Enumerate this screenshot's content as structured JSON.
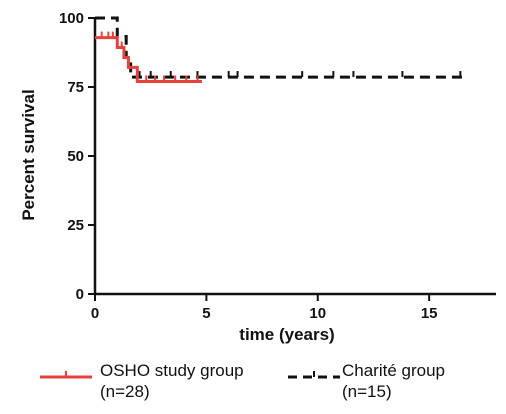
{
  "chart_data": {
    "type": "line",
    "step": true,
    "xlabel": "time (years)",
    "ylabel": "Percent survival",
    "xlim": [
      0,
      18
    ],
    "ylim": [
      0,
      100
    ],
    "xticks": [
      "0",
      "5",
      "10",
      "15"
    ],
    "yticks": [
      "0",
      "25",
      "50",
      "75",
      "100"
    ],
    "grid": false,
    "legend_position": "bottom",
    "series": [
      {
        "name": "OSHO study group",
        "count_label": "(n=28)",
        "color": "#e8413c",
        "style": "solid",
        "points": [
          [
            0,
            92.9
          ],
          [
            1.0,
            92.9
          ],
          [
            1.0,
            89.3
          ],
          [
            1.3,
            89.3
          ],
          [
            1.3,
            85.7
          ],
          [
            1.5,
            85.7
          ],
          [
            1.5,
            82.1
          ],
          [
            1.9,
            82.1
          ],
          [
            1.9,
            77.0
          ],
          [
            4.8,
            77.0
          ]
        ],
        "censor_times": [
          0.3,
          0.6,
          0.8,
          1.2,
          2.3,
          2.7,
          3.1,
          3.6,
          4.1,
          4.6
        ]
      },
      {
        "name": "Charité group",
        "count_label": "(n=15)",
        "color": "#111111",
        "style": "dashed",
        "points": [
          [
            0,
            100
          ],
          [
            1.0,
            100
          ],
          [
            1.0,
            93.3
          ],
          [
            1.4,
            93.3
          ],
          [
            1.4,
            85.7
          ],
          [
            1.6,
            85.7
          ],
          [
            1.6,
            78.6
          ],
          [
            16.5,
            78.6
          ]
        ],
        "censor_times": [
          2.0,
          2.5,
          3.4,
          4.6,
          6.0,
          6.4,
          9.3,
          10.7,
          11.6,
          13.8,
          16.4
        ]
      }
    ]
  }
}
